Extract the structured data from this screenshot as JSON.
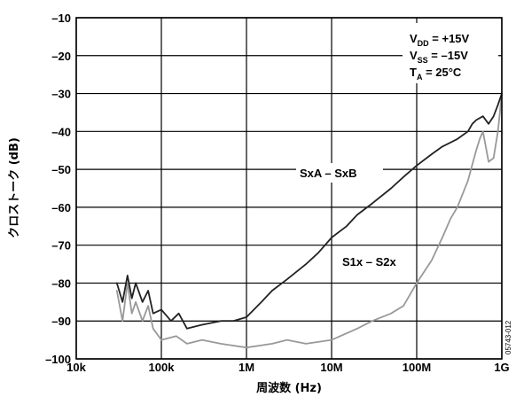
{
  "chart_data": {
    "type": "line",
    "title": "",
    "xlabel": "周波数 (Hz)",
    "ylabel": "クロストーク (dB)",
    "xscale": "log",
    "xlim": [
      10000,
      1000000000
    ],
    "ylim": [
      -100,
      -10
    ],
    "grid": true,
    "x_tick_labels": [
      "10k",
      "100k",
      "1M",
      "10M",
      "100M",
      "1G"
    ],
    "x_tick_values": [
      10000,
      100000,
      1000000,
      10000000,
      100000000,
      1000000000
    ],
    "y_ticks": [
      -10,
      -20,
      -30,
      -40,
      -50,
      -60,
      -70,
      -80,
      -90,
      -100
    ],
    "y_tick_labels": [
      "–10",
      "–20",
      "–30",
      "–40",
      "–50",
      "–60",
      "–70",
      "–80",
      "–90",
      "–100"
    ],
    "conditions": {
      "vdd": {
        "sym": "V",
        "sub": "DD",
        "rest": " = +15V"
      },
      "vss": {
        "sym": "V",
        "sub": "SS",
        "rest": " = –15V"
      },
      "ta": {
        "sym": "T",
        "sub": "A",
        "rest": " = 25°C"
      }
    },
    "figure_id": "05743-012",
    "series": [
      {
        "name": "SxA – SxB",
        "color": "#222222",
        "x": [
          30000,
          35000,
          40000,
          45000,
          50000,
          60000,
          70000,
          80000,
          100000,
          130000,
          160000,
          200000,
          300000,
          500000,
          700000,
          1000000,
          1500000,
          2000000,
          3000000,
          5000000,
          7000000,
          10000000,
          15000000,
          20000000,
          30000000,
          50000000,
          70000000,
          100000000,
          150000000,
          200000000,
          300000000,
          400000000,
          450000000,
          500000000,
          600000000,
          700000000,
          800000000,
          900000000,
          1000000000
        ],
        "y": [
          -80,
          -85,
          -78,
          -84,
          -80,
          -85,
          -82,
          -88,
          -87,
          -90,
          -88,
          -92,
          -91,
          -90,
          -90,
          -89,
          -85,
          -82,
          -79,
          -75,
          -72,
          -68,
          -65,
          -62,
          -59,
          -55,
          -52,
          -49,
          -46,
          -44,
          -42,
          -40,
          -38,
          -37,
          -36,
          -38,
          -36,
          -33,
          -30
        ]
      },
      {
        "name": "S1x – S2x",
        "color": "#999999",
        "x": [
          30000,
          35000,
          40000,
          45000,
          50000,
          60000,
          70000,
          80000,
          100000,
          150000,
          200000,
          300000,
          500000,
          1000000,
          2000000,
          3000000,
          5000000,
          10000000,
          20000000,
          30000000,
          50000000,
          70000000,
          100000000,
          150000000,
          200000000,
          250000000,
          300000000,
          400000000,
          500000000,
          550000000,
          600000000,
          700000000,
          800000000,
          900000000,
          1000000000
        ],
        "y": [
          -82,
          -90,
          -80,
          -88,
          -85,
          -90,
          -86,
          -92,
          -95,
          -94,
          -96,
          -95,
          -96,
          -97,
          -96,
          -95,
          -96,
          -95,
          -92,
          -90,
          -88,
          -86,
          -80,
          -74,
          -68,
          -63,
          -60,
          -53,
          -45,
          -42,
          -40,
          -48,
          -47,
          -40,
          -30
        ]
      }
    ]
  }
}
